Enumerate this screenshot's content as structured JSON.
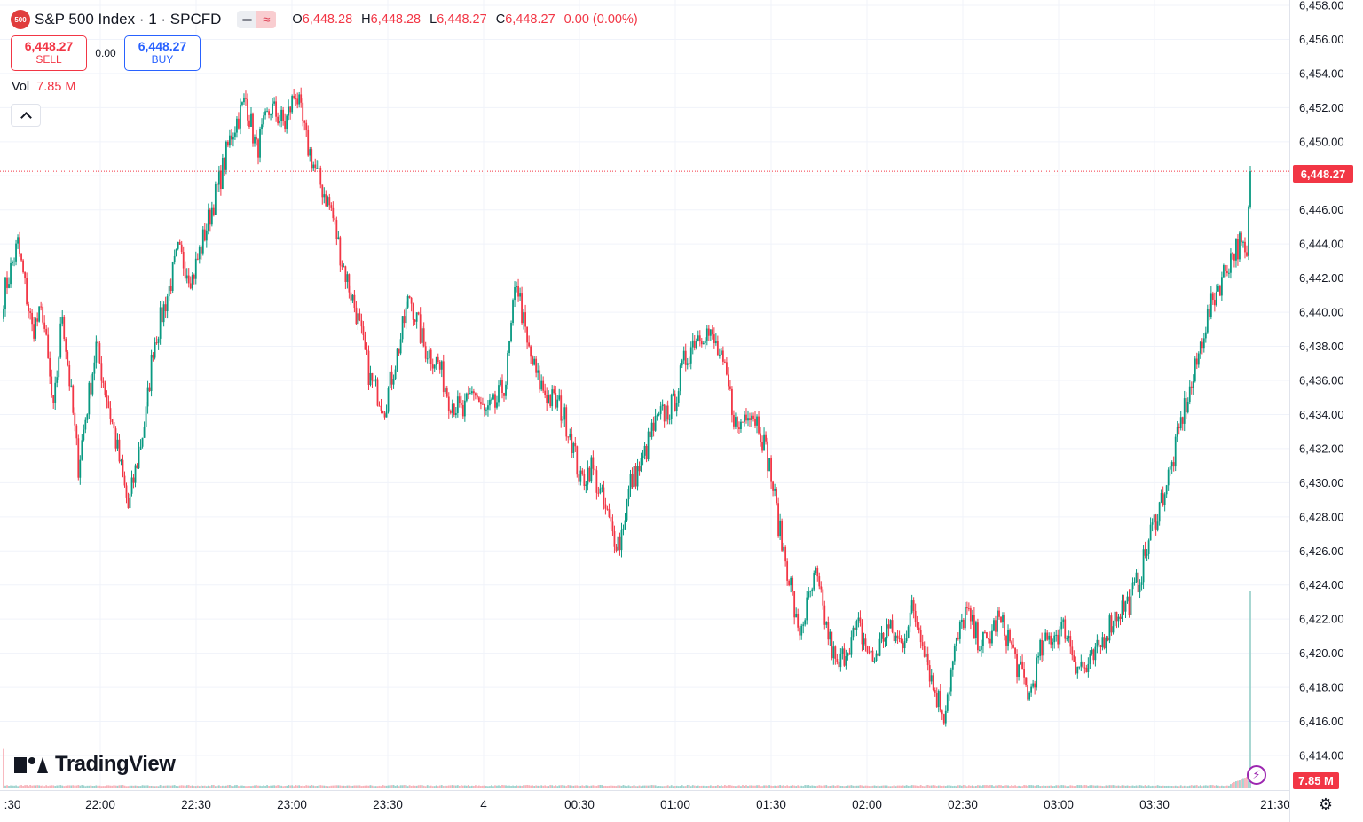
{
  "header": {
    "symbol_badge": "500",
    "title": "S&P 500 Index · 1 · SPCFD",
    "ohlc": {
      "o_label": "O",
      "o": "6,448.28",
      "h_label": "H",
      "h": "6,448.28",
      "l_label": "L",
      "l": "6,448.27",
      "c_label": "C",
      "c": "6,448.27",
      "change": "0.00 (0.00%)"
    }
  },
  "trade": {
    "sell_price": "6,448.27",
    "sell_label": "SELL",
    "spread": "0.00",
    "buy_price": "6,448.27",
    "buy_label": "BUY"
  },
  "volume": {
    "label": "Vol",
    "value": "7.85 M"
  },
  "branding": {
    "logo_text": "TradingView"
  },
  "price_axis": {
    "current_price_label": "6,448.27",
    "volume_label": "7.85 M"
  },
  "colors": {
    "up": "#089981",
    "down": "#f23645",
    "volume_up": "#9ed3ce",
    "volume_down": "#f7b3ba",
    "grid": "#f0f3fa"
  },
  "chart_data": {
    "type": "candlestick",
    "interval": "1 minute",
    "y_axis": {
      "range": [
        6413.0,
        6458.0
      ],
      "tick_labels": [
        "6,458.00",
        "6,456.00",
        "6,454.00",
        "6,452.00",
        "6,450.00",
        "6,448.00",
        "6,446.00",
        "6,444.00",
        "6,442.00",
        "6,440.00",
        "6,438.00",
        "6,436.00",
        "6,434.00",
        "6,432.00",
        "6,430.00",
        "6,428.00",
        "6,426.00",
        "6,424.00",
        "6,422.00",
        "6,420.00",
        "6,418.00",
        "6,416.00",
        "6,414.00"
      ],
      "tick_values": [
        6458,
        6456,
        6454,
        6452,
        6450,
        6448,
        6446,
        6444,
        6442,
        6440,
        6438,
        6436,
        6434,
        6432,
        6430,
        6428,
        6426,
        6424,
        6422,
        6420,
        6418,
        6416,
        6414
      ]
    },
    "x_axis": {
      "tick_labels": [
        ":30",
        "22:00",
        "22:30",
        "23:00",
        "23:30",
        "4",
        "00:30",
        "01:00",
        "01:30",
        "02:00",
        "02:30",
        "03:00",
        "03:30",
        "21:30"
      ]
    },
    "grid": true,
    "current_price": 6448.27,
    "path_anchors": [
      [
        0,
        6441.0
      ],
      [
        8,
        6444.0
      ],
      [
        16,
        6439.0
      ],
      [
        22,
        6440.0
      ],
      [
        28,
        6434.0
      ],
      [
        33,
        6440.0
      ],
      [
        42,
        6431.0
      ],
      [
        52,
        6438.0
      ],
      [
        56,
        6436.0
      ],
      [
        62,
        6433.0
      ],
      [
        70,
        6428.5
      ],
      [
        80,
        6434.0
      ],
      [
        84,
        6438.0
      ],
      [
        92,
        6441.0
      ],
      [
        98,
        6443.5
      ],
      [
        106,
        6442.0
      ],
      [
        114,
        6445.0
      ],
      [
        122,
        6448.0
      ],
      [
        128,
        6450.5
      ],
      [
        136,
        6452.5
      ],
      [
        142,
        6449.5
      ],
      [
        150,
        6452.0
      ],
      [
        158,
        6451.0
      ],
      [
        164,
        6453.0
      ],
      [
        170,
        6450.0
      ],
      [
        176,
        6448.0
      ],
      [
        184,
        6446.0
      ],
      [
        190,
        6443.0
      ],
      [
        198,
        6440.0
      ],
      [
        206,
        6436.0
      ],
      [
        214,
        6434.5
      ],
      [
        222,
        6438.0
      ],
      [
        228,
        6441.0
      ],
      [
        236,
        6438.0
      ],
      [
        244,
        6437.0
      ],
      [
        250,
        6435.0
      ],
      [
        258,
        6434.0
      ],
      [
        264,
        6435.5
      ],
      [
        270,
        6434.0
      ],
      [
        276,
        6434.5
      ],
      [
        282,
        6436.0
      ],
      [
        288,
        6442.0
      ],
      [
        294,
        6438.0
      ],
      [
        300,
        6436.0
      ],
      [
        306,
        6435.0
      ],
      [
        312,
        6434.5
      ],
      [
        318,
        6433.0
      ],
      [
        324,
        6430.0
      ],
      [
        330,
        6431.0
      ],
      [
        336,
        6429.0
      ],
      [
        342,
        6427.0
      ],
      [
        346,
        6426.5
      ],
      [
        352,
        6430.0
      ],
      [
        358,
        6431.0
      ],
      [
        364,
        6433.0
      ],
      [
        370,
        6434.0
      ],
      [
        376,
        6434.5
      ],
      [
        382,
        6437.0
      ],
      [
        388,
        6438.5
      ],
      [
        394,
        6439.0
      ],
      [
        400,
        6438.0
      ],
      [
        406,
        6436.0
      ],
      [
        412,
        6433.0
      ],
      [
        418,
        6434.5
      ],
      [
        424,
        6433.5
      ],
      [
        430,
        6431.0
      ],
      [
        436,
        6427.0
      ],
      [
        442,
        6424.0
      ],
      [
        446,
        6421.0
      ],
      [
        452,
        6423.0
      ],
      [
        456,
        6424.5
      ],
      [
        462,
        6421.5
      ],
      [
        468,
        6419.0
      ],
      [
        474,
        6420.5
      ],
      [
        480,
        6421.5
      ],
      [
        488,
        6419.5
      ],
      [
        496,
        6421.5
      ],
      [
        504,
        6420.5
      ],
      [
        510,
        6422.5
      ],
      [
        516,
        6421.0
      ],
      [
        522,
        6418.0
      ],
      [
        528,
        6416.5
      ],
      [
        534,
        6420.0
      ],
      [
        540,
        6422.5
      ],
      [
        546,
        6421.0
      ],
      [
        552,
        6420.5
      ],
      [
        558,
        6422.0
      ],
      [
        564,
        6421.0
      ],
      [
        570,
        6419.0
      ],
      [
        576,
        6417.5
      ],
      [
        582,
        6420.0
      ],
      [
        588,
        6421.0
      ],
      [
        596,
        6421.5
      ],
      [
        602,
        6419.5
      ],
      [
        608,
        6419.0
      ],
      [
        614,
        6420.0
      ],
      [
        620,
        6421.5
      ],
      [
        626,
        6422.5
      ],
      [
        632,
        6423.0
      ],
      [
        638,
        6424.5
      ],
      [
        644,
        6427.0
      ],
      [
        650,
        6429.0
      ],
      [
        656,
        6431.0
      ],
      [
        662,
        6434.0
      ],
      [
        668,
        6436.0
      ],
      [
        674,
        6439.0
      ],
      [
        680,
        6441.0
      ],
      [
        686,
        6442.5
      ],
      [
        690,
        6443.5
      ],
      [
        694,
        6444.0
      ],
      [
        698,
        6443.0
      ],
      [
        700,
        6448.27
      ]
    ],
    "volume": {
      "last_bar": 7.85,
      "unit": "M",
      "baseline_bars": "small, uniform"
    }
  }
}
